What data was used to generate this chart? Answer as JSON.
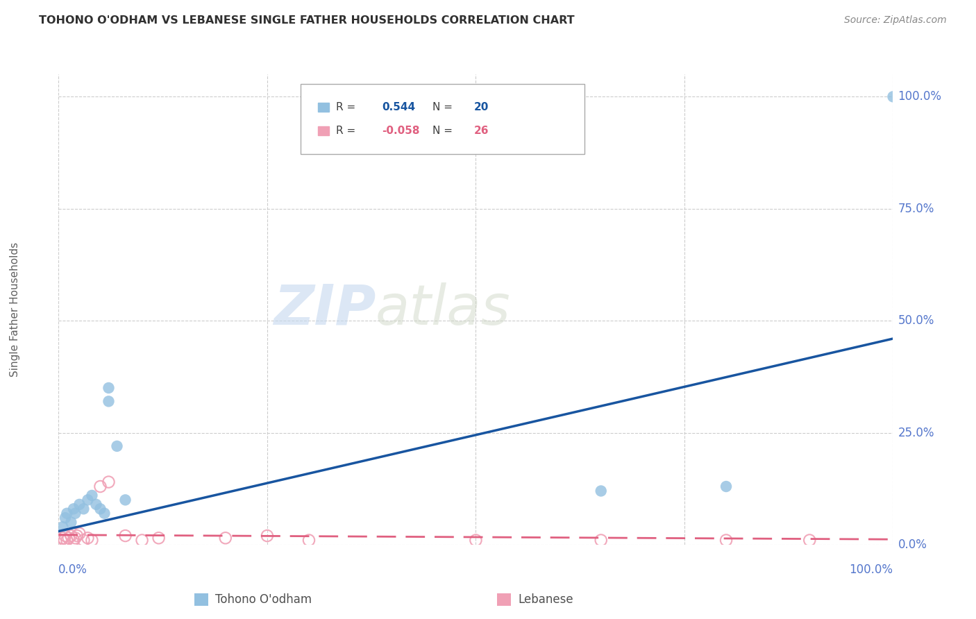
{
  "title": "TOHONO O'ODHAM VS LEBANESE SINGLE FATHER HOUSEHOLDS CORRELATION CHART",
  "source": "Source: ZipAtlas.com",
  "ylabel": "Single Father Households",
  "ytick_labels": [
    "0.0%",
    "25.0%",
    "50.0%",
    "75.0%",
    "100.0%"
  ],
  "ytick_values": [
    0.0,
    0.25,
    0.5,
    0.75,
    1.0
  ],
  "xtick_labels": [
    "0.0%",
    "100.0%"
  ],
  "xtick_values": [
    0.0,
    1.0
  ],
  "tohono_scatter_x": [
    0.005,
    0.008,
    0.01,
    0.015,
    0.018,
    0.02,
    0.025,
    0.03,
    0.035,
    0.04,
    0.045,
    0.05,
    0.055,
    0.06,
    0.07,
    0.08,
    0.06,
    0.65,
    0.8,
    1.0
  ],
  "tohono_scatter_y": [
    0.04,
    0.06,
    0.07,
    0.05,
    0.08,
    0.07,
    0.09,
    0.08,
    0.1,
    0.11,
    0.09,
    0.08,
    0.07,
    0.32,
    0.22,
    0.1,
    0.35,
    0.12,
    0.13,
    1.0
  ],
  "lebanese_scatter_x": [
    0.003,
    0.005,
    0.007,
    0.008,
    0.01,
    0.012,
    0.015,
    0.018,
    0.02,
    0.022,
    0.025,
    0.03,
    0.035,
    0.04,
    0.05,
    0.06,
    0.08,
    0.1,
    0.12,
    0.2,
    0.25,
    0.5,
    0.65,
    0.8,
    0.9,
    0.3
  ],
  "lebanese_scatter_y": [
    0.01,
    0.015,
    0.01,
    0.02,
    0.01,
    0.015,
    0.02,
    0.01,
    0.015,
    0.02,
    0.025,
    0.01,
    0.015,
    0.01,
    0.13,
    0.14,
    0.02,
    0.01,
    0.015,
    0.015,
    0.02,
    0.01,
    0.01,
    0.01,
    0.01,
    0.01
  ],
  "tohono_line_x": [
    0.0,
    1.0
  ],
  "tohono_line_y": [
    0.03,
    0.46
  ],
  "lebanese_line_x": [
    0.0,
    1.0
  ],
  "lebanese_line_y": [
    0.022,
    0.012
  ],
  "watermark_zip": "ZIP",
  "watermark_atlas": "atlas",
  "background_color": "#ffffff",
  "plot_bg_color": "#ffffff",
  "grid_color": "#cccccc",
  "tohono_color": "#92c0e0",
  "lebanese_color": "#f0a0b5",
  "tohono_line_color": "#1855a0",
  "lebanese_line_color": "#e06080",
  "title_color": "#303030",
  "axis_tick_color": "#5577cc",
  "ylabel_color": "#606060",
  "source_color": "#888888",
  "legend_R_color": "#404040",
  "legend_tohono_val_color": "#1855a0",
  "legend_lebanese_val_color": "#e06080",
  "legend_box_edge": "#aaaaaa",
  "bottom_legend_tohono_label": "Tohono O'odham",
  "bottom_legend_lebanese_label": "Lebanese"
}
